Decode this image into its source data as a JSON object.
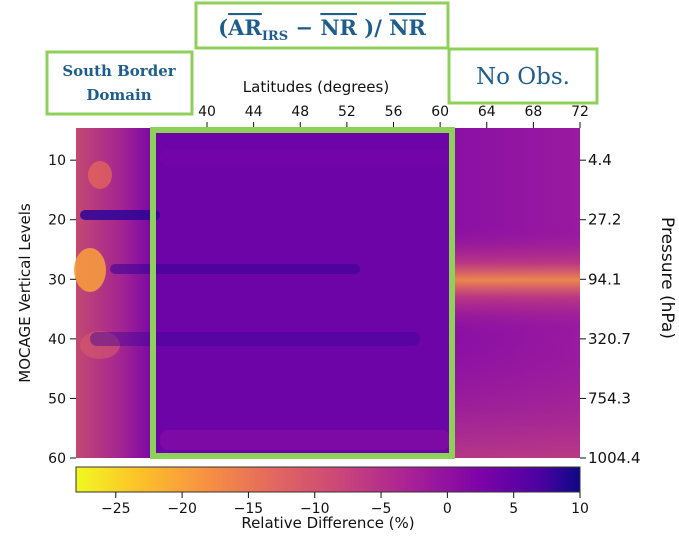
{
  "chart_data": {
    "type": "heatmap",
    "title_parts": {
      "open": "(",
      "ar": "AR",
      "sub": "IRS",
      "minus": " − ",
      "nr1": "NR",
      "close": " )/ ",
      "nr2": "NR"
    },
    "top_xlabel": "Latitudes (degrees)",
    "top_ticks": [
      "40",
      "44",
      "48",
      "52",
      "56",
      "60",
      "64",
      "68",
      "72"
    ],
    "ylabel_left": "MOCAGE Vertical Levels",
    "left_ticks": [
      "10",
      "20",
      "30",
      "40",
      "50",
      "60"
    ],
    "ylabel_right": "Pressure (hPa)",
    "right_ticks": [
      "4.4",
      "27.2",
      "94.1",
      "320.7",
      "754.3",
      "1004.4"
    ],
    "colorbar_label": "Relative Difference (%)",
    "colorbar_ticks": [
      "−25",
      "−20",
      "−15",
      "−10",
      "−5",
      "0",
      "5",
      "10"
    ],
    "colorbar_range": [
      -28,
      10
    ],
    "annotations": {
      "south_border_line1": "South Border",
      "south_border_line2": "Domain",
      "no_obs": "No Obs."
    },
    "colors": {
      "box_green": "#8ed05a",
      "label_blue": "#1f5e8c"
    }
  }
}
